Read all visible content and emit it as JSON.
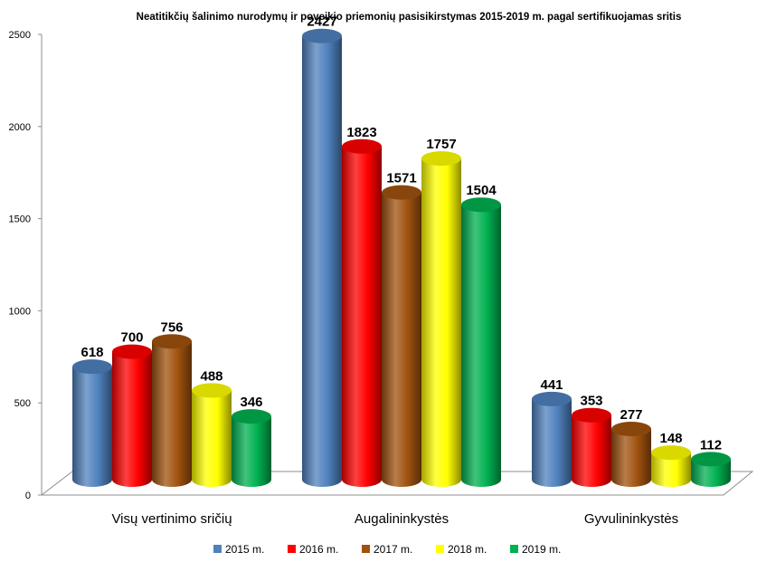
{
  "chart_data": {
    "type": "bar",
    "title": "Neatitikčių šalinimo nurodymų ir poveikio priemonių pasisikirstymas 2015-2019 m. pagal sertifikuojamas sritis",
    "categories": [
      "Visų vertinimo sričių",
      "Augalininkystės",
      "Gyvulininkystės"
    ],
    "series": [
      {
        "name": "2015 m.",
        "values": [
          618,
          2427,
          441
        ],
        "color": "#4f81bd"
      },
      {
        "name": "2016 m.",
        "values": [
          700,
          1823,
          353
        ],
        "color": "#ff0000"
      },
      {
        "name": "2017 m.",
        "values": [
          756,
          1571,
          277
        ],
        "color": "#a0520e"
      },
      {
        "name": "2018 m.",
        "values": [
          488,
          1757,
          148
        ],
        "color": "#ffff00"
      },
      {
        "name": "2019 m.",
        "values": [
          346,
          1504,
          112
        ],
        "color": "#00b050"
      }
    ],
    "yticks": [
      "0",
      "500",
      "1000",
      "1500",
      "2000",
      "2500"
    ],
    "ylim": [
      0,
      2500
    ],
    "xlabel": "",
    "ylabel": "",
    "grid": false,
    "legend": "bottom",
    "style": "3d-cylinder"
  }
}
